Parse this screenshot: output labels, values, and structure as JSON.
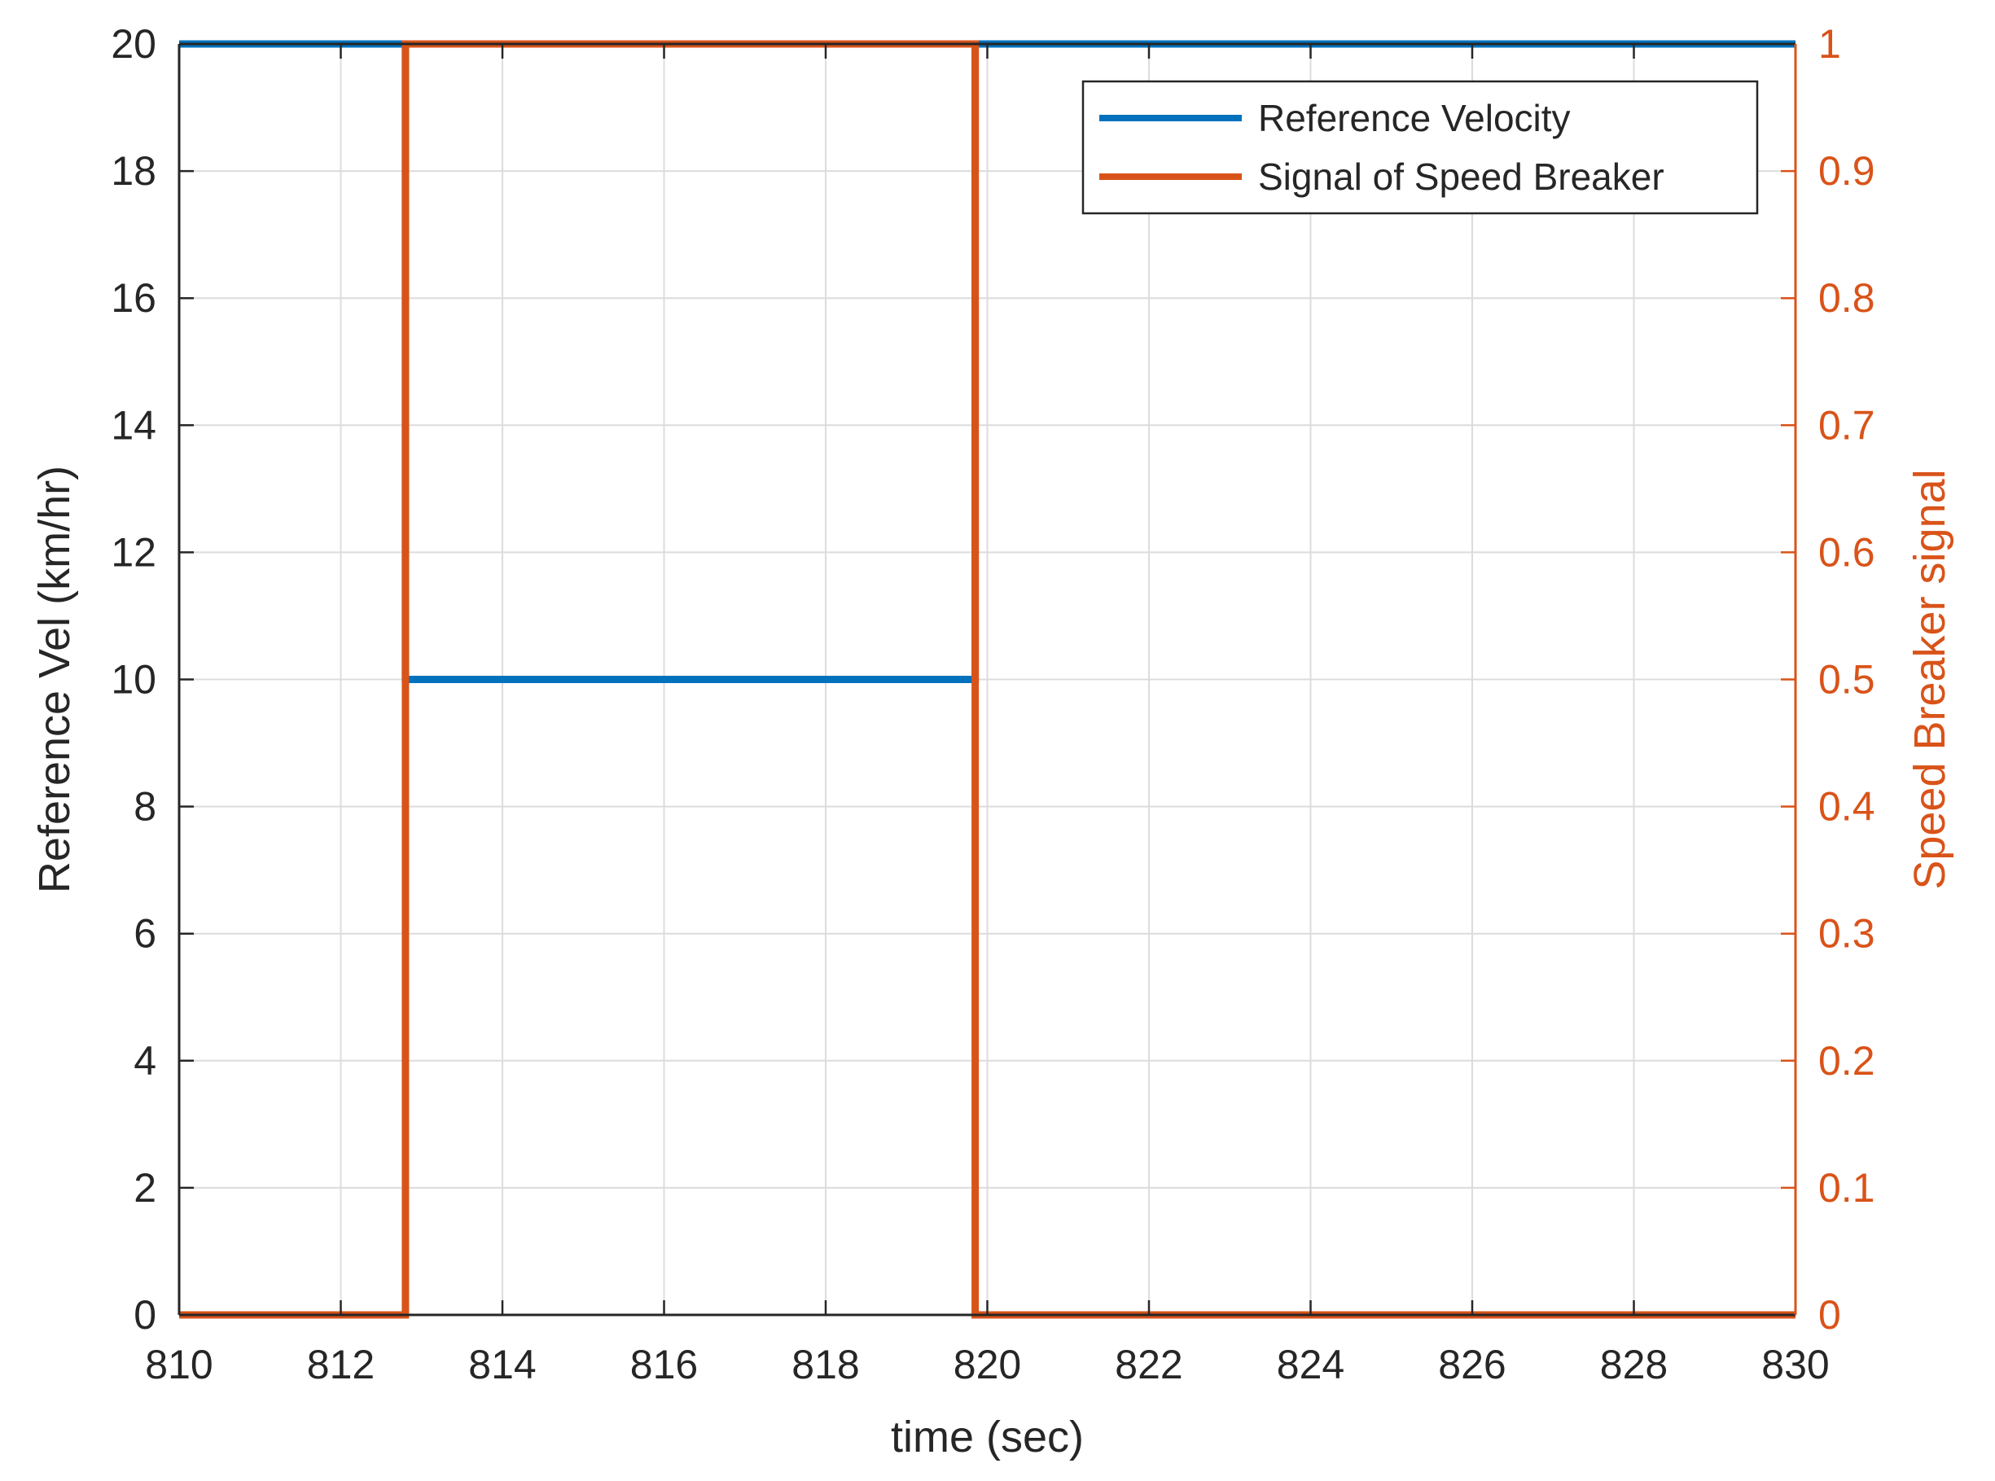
{
  "chart_data": {
    "type": "line",
    "title": "",
    "xlabel": "time (sec)",
    "ylabel_left": "Reference Vel (km/hr)",
    "ylabel_right": "Speed Breaker signal",
    "xlim": [
      810,
      830
    ],
    "ylim_left": [
      0,
      20
    ],
    "ylim_right": [
      0,
      1
    ],
    "x_ticks": [
      "810",
      "812",
      "814",
      "816",
      "818",
      "820",
      "822",
      "824",
      "826",
      "828",
      "830"
    ],
    "y_left_ticks": [
      "0",
      "2",
      "4",
      "6",
      "8",
      "10",
      "12",
      "14",
      "16",
      "18",
      "20"
    ],
    "y_right_ticks": [
      "0",
      "0.1",
      "0.2",
      "0.3",
      "0.4",
      "0.5",
      "0.6",
      "0.7",
      "0.8",
      "0.9",
      "1"
    ],
    "grid": true,
    "legend_position": "top-right",
    "series": [
      {
        "name": "Reference Velocity",
        "axis": "left",
        "color": "#0072BD",
        "x": [
          810,
          812.8,
          812.8,
          819.85,
          819.85,
          830
        ],
        "y": [
          20,
          20,
          10,
          10,
          20,
          20
        ]
      },
      {
        "name": "Signal of Speed Breaker",
        "axis": "right",
        "color": "#D95319",
        "x": [
          810,
          812.8,
          812.8,
          819.85,
          819.85,
          830
        ],
        "y": [
          0,
          0,
          1,
          1,
          0,
          0
        ]
      }
    ]
  }
}
